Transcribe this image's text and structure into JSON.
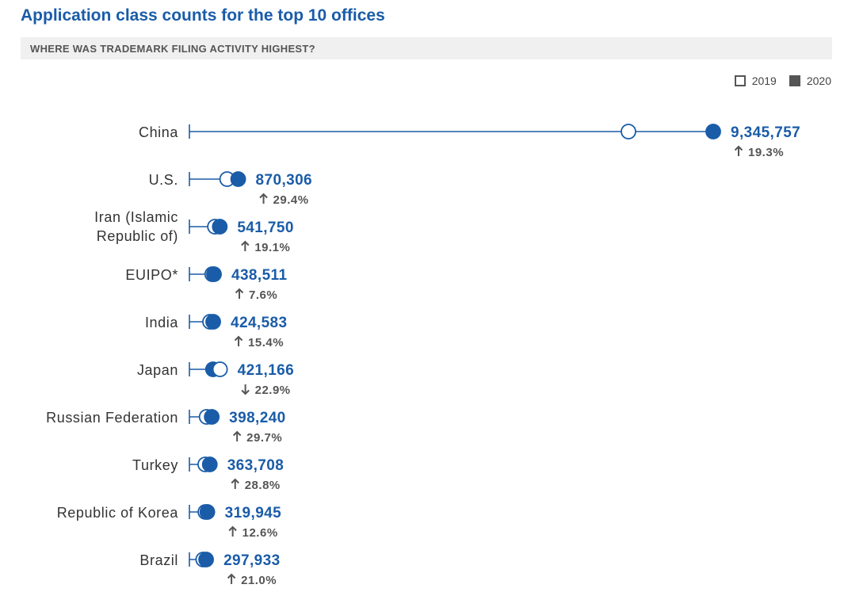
{
  "chart_data": {
    "type": "dumbbell",
    "title": "Application class counts for the top 10 offices",
    "subtitle": "WHERE WAS TRADEMARK FILING ACTIVITY HIGHEST?",
    "legend": [
      {
        "label": "2019",
        "style": "hollow"
      },
      {
        "label": "2020",
        "style": "filled"
      }
    ],
    "legend_position": "top-right",
    "series_color": "#1a5ca8",
    "xlim": [
      0,
      9345757
    ],
    "grid": false,
    "categories": [
      "China",
      "U.S.",
      "Iran (Islamic Republic of)",
      "EUIPO*",
      "India",
      "Japan",
      "Russian Federation",
      "Turkey",
      "Republic of Korea",
      "Brazil"
    ],
    "rows": [
      {
        "label_lines": [
          "China"
        ],
        "v2019": 7833000,
        "v2020": 9345757,
        "value_label": "9,345,757",
        "change": "19.3%",
        "direction": "up"
      },
      {
        "label_lines": [
          "U.S."
        ],
        "v2019": 673000,
        "v2020": 870306,
        "value_label": "870,306",
        "change": "29.4%",
        "direction": "up"
      },
      {
        "label_lines": [
          "Iran (Islamic",
          "Republic of)"
        ],
        "v2019": 455000,
        "v2020": 541750,
        "value_label": "541,750",
        "change": "19.1%",
        "direction": "up"
      },
      {
        "label_lines": [
          "EUIPO*"
        ],
        "v2019": 407500,
        "v2020": 438511,
        "value_label": "438,511",
        "change": "7.6%",
        "direction": "up"
      },
      {
        "label_lines": [
          "India"
        ],
        "v2019": 368000,
        "v2020": 424583,
        "value_label": "424,583",
        "change": "15.4%",
        "direction": "up"
      },
      {
        "label_lines": [
          "Japan"
        ],
        "v2019": 546000,
        "v2020": 421166,
        "value_label": "421,166",
        "change": "22.9%",
        "direction": "down"
      },
      {
        "label_lines": [
          "Russian Federation"
        ],
        "v2019": 307000,
        "v2020": 398240,
        "value_label": "398,240",
        "change": "29.7%",
        "direction": "up"
      },
      {
        "label_lines": [
          "Turkey"
        ],
        "v2019": 282000,
        "v2020": 363708,
        "value_label": "363,708",
        "change": "28.8%",
        "direction": "up"
      },
      {
        "label_lines": [
          "Republic of Korea"
        ],
        "v2019": 284000,
        "v2020": 319945,
        "value_label": "319,945",
        "change": "12.6%",
        "direction": "up"
      },
      {
        "label_lines": [
          "Brazil"
        ],
        "v2019": 246000,
        "v2020": 297933,
        "value_label": "297,933",
        "change": "21.0%",
        "direction": "up"
      }
    ]
  }
}
